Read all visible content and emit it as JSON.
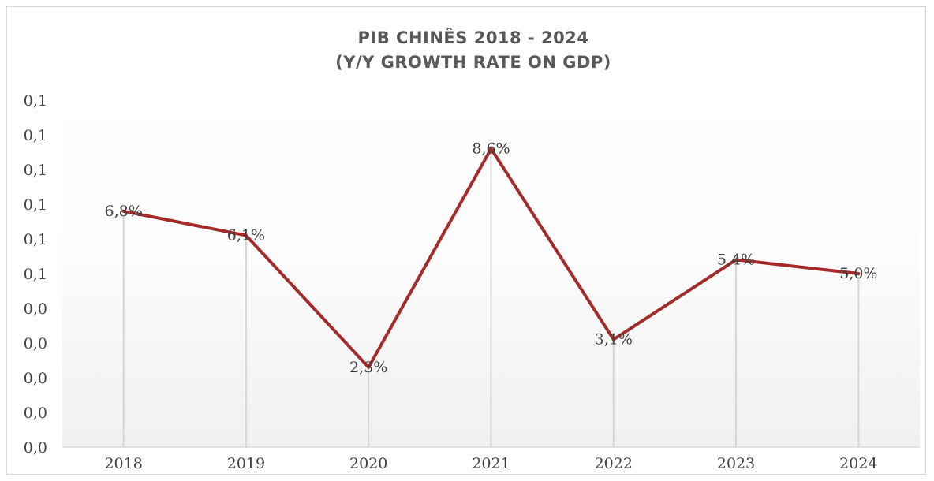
{
  "chart_data": {
    "type": "line",
    "title_line1": "PIB CHINÊS 2018 - 2024",
    "title_line2": "(Y/Y GROWTH RATE ON GDP)",
    "categories": [
      "2018",
      "2019",
      "2020",
      "2021",
      "2022",
      "2023",
      "2024"
    ],
    "values": [
      6.8,
      6.1,
      2.3,
      8.6,
      3.1,
      5.4,
      5.0
    ],
    "data_labels": [
      "6,8%",
      "6,1%",
      "2,3%",
      "8,6%",
      "3,1%",
      "5,4%",
      "5,0%"
    ],
    "y_tick_labels": [
      "0,0",
      "0,0",
      "0,0",
      "0,0",
      "0,0",
      "0,1",
      "0,1",
      "0,1",
      "0,1",
      "0,1",
      "0,1"
    ],
    "ylim": [
      0,
      10
    ],
    "line_color": "#a52a2a",
    "drop_lines": true,
    "grid": false,
    "legend": "none"
  }
}
